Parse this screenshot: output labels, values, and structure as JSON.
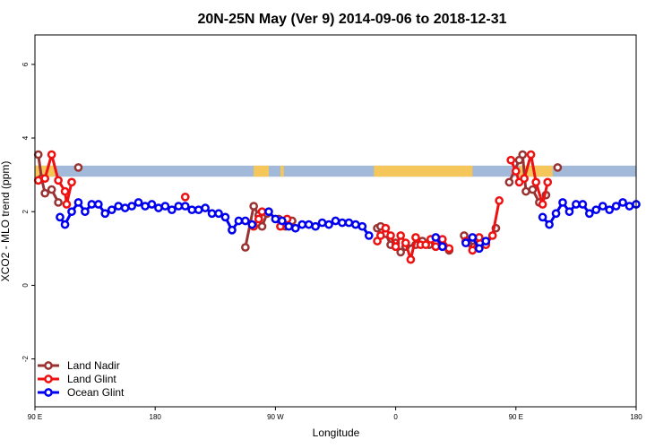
{
  "chart_data": {
    "type": "line",
    "title": "20N-25N May (Ver 9)   2014-09-06 to 2018-12-31",
    "xlabel": "Longitude",
    "ylabel": "XCO2 - MLO trend (ppm)",
    "xlim": [
      0,
      360
    ],
    "ylim": [
      -3.3,
      6.8
    ],
    "x_ticks": [
      {
        "value": 0,
        "label": "90 E"
      },
      {
        "value": 72,
        "label": "180"
      },
      {
        "value": 144,
        "label": "90 W"
      },
      {
        "value": 216,
        "label": "0"
      },
      {
        "value": 288,
        "label": "90 E"
      },
      {
        "value": 360,
        "label": "180"
      }
    ],
    "y_ticks": [
      -2,
      0,
      2,
      4,
      6
    ],
    "legend_position": "bottom-left",
    "land_strip": {
      "y_range": [
        2.95,
        3.25
      ],
      "ocean_color": "#a3b9d9",
      "land_color": "#f5c75a",
      "land_segments": [
        [
          0,
          12
        ],
        [
          131,
          140
        ],
        [
          147,
          149
        ],
        [
          203,
          262
        ],
        [
          290,
          310
        ]
      ]
    },
    "series": [
      {
        "name": "Land Nadir",
        "color": "#993333",
        "points": [
          [
            2,
            3.55
          ],
          [
            4,
            2.9
          ],
          [
            6,
            2.5
          ],
          [
            10,
            2.6
          ],
          [
            14,
            2.25
          ],
          [
            26,
            3.2
          ],
          [
            126,
            1.03
          ],
          [
            131,
            2.15
          ],
          [
            134,
            1.9
          ],
          [
            136,
            1.6
          ],
          [
            139,
            1.95
          ],
          [
            146,
            1.8
          ],
          [
            150,
            1.6
          ],
          [
            154,
            1.75
          ],
          [
            205,
            1.55
          ],
          [
            207,
            1.6
          ],
          [
            210,
            1.4
          ],
          [
            213,
            1.1
          ],
          [
            216,
            1.15
          ],
          [
            219,
            0.9
          ],
          [
            222,
            1.05
          ],
          [
            228,
            1.1
          ],
          [
            232,
            1.2
          ],
          [
            236,
            1.1
          ],
          [
            240,
            1.15
          ],
          [
            244,
            1.1
          ],
          [
            248,
            0.95
          ],
          [
            257,
            1.35
          ],
          [
            263,
            1.05
          ],
          [
            270,
            1.15
          ],
          [
            276,
            1.55
          ],
          [
            284,
            2.8
          ],
          [
            290,
            3.4
          ],
          [
            292,
            3.55
          ],
          [
            294,
            2.55
          ],
          [
            298,
            2.6
          ],
          [
            302,
            2.25
          ],
          [
            306,
            2.45
          ],
          [
            313,
            3.2
          ]
        ]
      },
      {
        "name": "Land Glint",
        "color": "#ee1111",
        "points": [
          [
            2,
            2.85
          ],
          [
            6,
            2.9
          ],
          [
            10,
            3.55
          ],
          [
            14,
            2.85
          ],
          [
            18,
            2.55
          ],
          [
            19,
            2.2
          ],
          [
            22,
            2.8
          ],
          [
            90,
            2.4
          ],
          [
            131,
            1.6
          ],
          [
            134,
            1.8
          ],
          [
            136,
            2.0
          ],
          [
            147,
            1.6
          ],
          [
            151,
            1.8
          ],
          [
            205,
            1.2
          ],
          [
            207,
            1.35
          ],
          [
            210,
            1.55
          ],
          [
            213,
            1.35
          ],
          [
            216,
            1.05
          ],
          [
            219,
            1.35
          ],
          [
            222,
            1.15
          ],
          [
            225,
            0.7
          ],
          [
            228,
            1.3
          ],
          [
            231,
            1.1
          ],
          [
            234,
            1.1
          ],
          [
            237,
            1.25
          ],
          [
            240,
            1.05
          ],
          [
            244,
            1.25
          ],
          [
            248,
            1.0
          ],
          [
            258,
            1.2
          ],
          [
            262,
            0.95
          ],
          [
            266,
            1.3
          ],
          [
            270,
            1.1
          ],
          [
            274,
            1.35
          ],
          [
            278,
            2.3
          ],
          [
            285,
            3.4
          ],
          [
            288,
            3.1
          ],
          [
            290,
            2.8
          ],
          [
            293,
            2.9
          ],
          [
            297,
            3.55
          ],
          [
            300,
            2.8
          ],
          [
            304,
            2.2
          ],
          [
            307,
            2.8
          ]
        ]
      },
      {
        "name": "Ocean Glint",
        "color": "#0000ee",
        "points": [
          [
            15,
            1.85
          ],
          [
            18,
            1.65
          ],
          [
            22,
            2.0
          ],
          [
            26,
            2.25
          ],
          [
            30,
            2.0
          ],
          [
            34,
            2.2
          ],
          [
            38,
            2.2
          ],
          [
            42,
            1.95
          ],
          [
            46,
            2.05
          ],
          [
            50,
            2.15
          ],
          [
            54,
            2.1
          ],
          [
            58,
            2.15
          ],
          [
            62,
            2.25
          ],
          [
            66,
            2.15
          ],
          [
            70,
            2.2
          ],
          [
            74,
            2.1
          ],
          [
            78,
            2.15
          ],
          [
            82,
            2.05
          ],
          [
            86,
            2.15
          ],
          [
            90,
            2.15
          ],
          [
            94,
            2.05
          ],
          [
            98,
            2.05
          ],
          [
            102,
            2.1
          ],
          [
            106,
            1.95
          ],
          [
            110,
            1.95
          ],
          [
            114,
            1.85
          ],
          [
            118,
            1.5
          ],
          [
            122,
            1.75
          ],
          [
            126,
            1.75
          ],
          [
            130,
            1.65
          ],
          [
            140,
            2.0
          ],
          [
            144,
            1.8
          ],
          [
            148,
            1.75
          ],
          [
            152,
            1.6
          ],
          [
            156,
            1.55
          ],
          [
            160,
            1.65
          ],
          [
            164,
            1.65
          ],
          [
            168,
            1.6
          ],
          [
            172,
            1.7
          ],
          [
            176,
            1.65
          ],
          [
            180,
            1.75
          ],
          [
            184,
            1.7
          ],
          [
            188,
            1.7
          ],
          [
            192,
            1.65
          ],
          [
            196,
            1.6
          ],
          [
            200,
            1.35
          ],
          [
            240,
            1.3
          ],
          [
            244,
            1.05
          ],
          [
            258,
            1.15
          ],
          [
            262,
            1.3
          ],
          [
            266,
            1.0
          ],
          [
            270,
            1.2
          ],
          [
            304,
            1.85
          ],
          [
            308,
            1.65
          ],
          [
            312,
            1.95
          ],
          [
            316,
            2.25
          ],
          [
            320,
            2.0
          ],
          [
            324,
            2.2
          ],
          [
            328,
            2.2
          ],
          [
            332,
            1.95
          ],
          [
            336,
            2.05
          ],
          [
            340,
            2.15
          ],
          [
            344,
            2.05
          ],
          [
            348,
            2.15
          ],
          [
            352,
            2.25
          ],
          [
            356,
            2.15
          ],
          [
            360,
            2.2
          ]
        ]
      }
    ]
  }
}
